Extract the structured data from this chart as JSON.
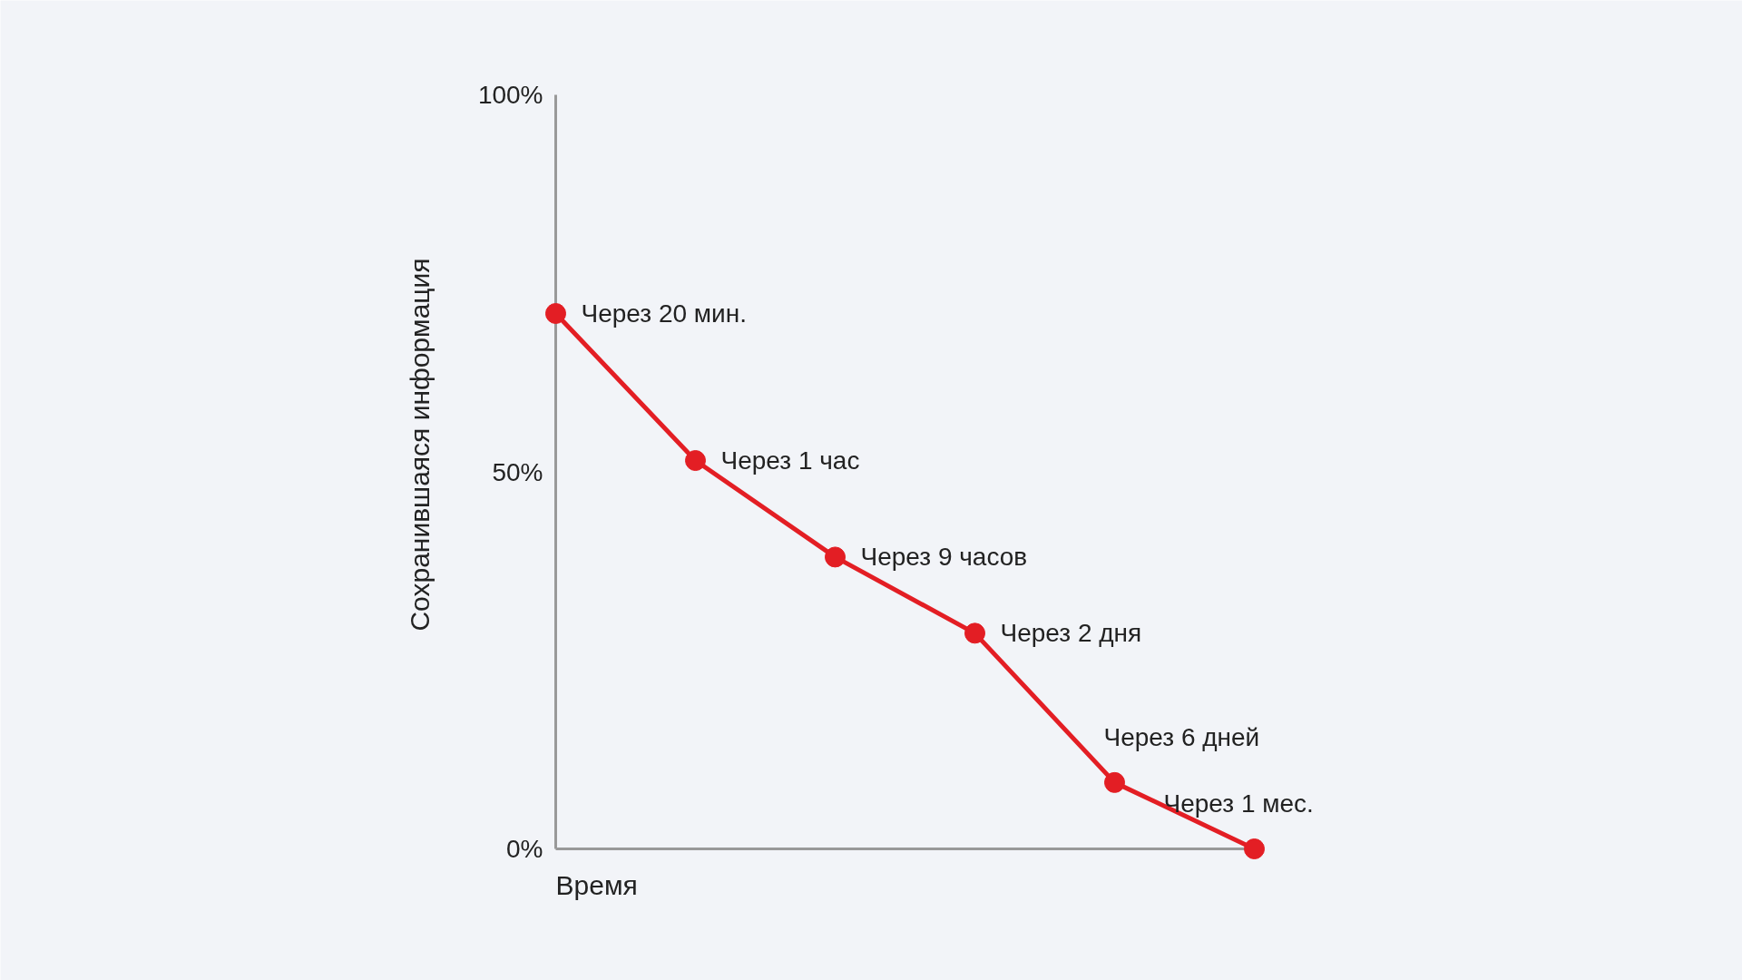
{
  "chart_data": {
    "type": "line",
    "xlabel": "Время",
    "ylabel": "Сохранившаяся информация",
    "categories": [
      null,
      null,
      null,
      null,
      null,
      null
    ],
    "series": [
      {
        "color": "#e31e24",
        "values": [
          71,
          51.5,
          38.7,
          28.6,
          8.8,
          0
        ]
      }
    ],
    "ylim": [
      0,
      100
    ],
    "yticks": [
      {
        "value": 0,
        "label": "0%"
      },
      {
        "value": 50,
        "label": "50%"
      },
      {
        "value": 100,
        "label": "100%"
      }
    ],
    "marker": "circle",
    "line_style": "solid",
    "grid": false,
    "annotations": [
      "Через 20 мин.",
      "Через 1 час",
      "Через 9 часов",
      "Через 2 дня",
      "Через 6 дней",
      "Через 1 мес."
    ]
  }
}
